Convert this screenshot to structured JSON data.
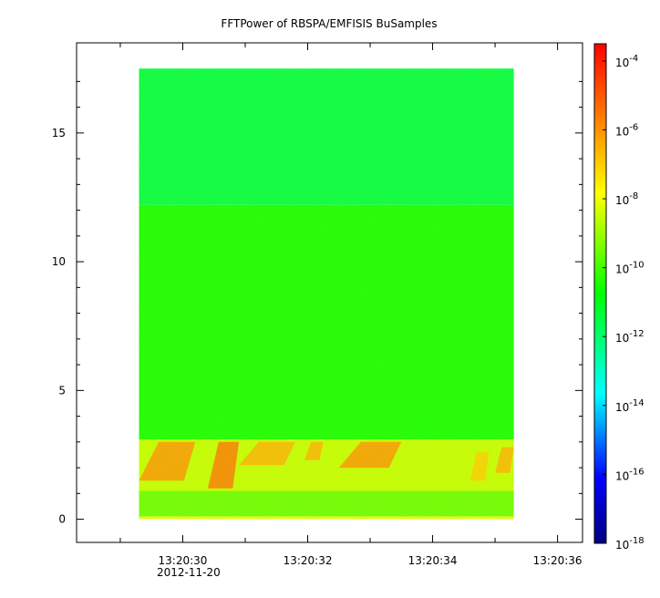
{
  "chart_data": {
    "type": "heatmap",
    "title": "FFTPower of RBSPA/EMFISIS  BuSamples",
    "x_range_seconds": [
      28.3,
      36.4
    ],
    "x_data_extent_seconds": [
      29.3,
      35.3
    ],
    "x_tick_labels": [
      "13:20:30",
      "13:20:32",
      "13:20:34",
      "13:20:36"
    ],
    "x_tick_values_seconds": [
      30,
      32,
      34,
      36
    ],
    "x_minor_tick_values_seconds": [
      29,
      31,
      33,
      35
    ],
    "x_date_label": "2012-11-20",
    "y_range": [
      -0.9,
      18.5
    ],
    "y_data_extent": [
      0,
      17.5
    ],
    "y_tick_labels": [
      "0",
      "5",
      "10",
      "15"
    ],
    "y_tick_values": [
      0,
      5,
      10,
      15
    ],
    "z_scale": "log",
    "z_range_exponent": [
      -18,
      -3.5
    ],
    "colorbar_tick_labels": [
      {
        "base": "10",
        "exp": "-4"
      },
      {
        "base": "10",
        "exp": "-6"
      },
      {
        "base": "10",
        "exp": "-8"
      },
      {
        "base": "10",
        "exp": "-10"
      },
      {
        "base": "10",
        "exp": "-12"
      },
      {
        "base": "10",
        "exp": "-14"
      },
      {
        "base": "10",
        "exp": "-16"
      },
      {
        "base": "10",
        "exp": "-18"
      }
    ],
    "colorbar_tick_exponents": [
      -4,
      -6,
      -8,
      -10,
      -12,
      -14,
      -16,
      -18
    ],
    "colormap": [
      "#00007f",
      "#0000ff",
      "#00ffff",
      "#00ff00",
      "#ffff00",
      "#ff7f00",
      "#ff0000"
    ],
    "bands": [
      {
        "y_from": 12.2,
        "y_to": 17.5,
        "log_power": -11.5
      },
      {
        "y_from": 3.1,
        "y_to": 12.2,
        "log_power": -10.5
      },
      {
        "y_from": 1.1,
        "y_to": 3.1,
        "log_power": -8.5
      },
      {
        "y_from": 0.1,
        "y_to": 1.1,
        "log_power": -9.5
      },
      {
        "y_from": 0,
        "y_to": 0.1,
        "log_power": -8
      }
    ],
    "bursts": [
      {
        "t_start": 29.3,
        "t_end": 30.2,
        "y_low": 1.5,
        "y_high": 3.0,
        "log_power": -6
      },
      {
        "t_start": 30.4,
        "t_end": 30.9,
        "y_low": 1.2,
        "y_high": 3.0,
        "log_power": -5.5
      },
      {
        "t_start": 30.9,
        "t_end": 31.8,
        "y_low": 2.1,
        "y_high": 3.0,
        "log_power": -6.5
      },
      {
        "t_start": 31.95,
        "t_end": 32.25,
        "y_low": 2.3,
        "y_high": 3.0,
        "log_power": -6.5
      },
      {
        "t_start": 32.5,
        "t_end": 33.5,
        "y_low": 2.0,
        "y_high": 3.0,
        "log_power": -6
      },
      {
        "t_start": 34.6,
        "t_end": 34.9,
        "y_low": 1.5,
        "y_high": 2.6,
        "log_power": -7
      },
      {
        "t_start": 35.0,
        "t_end": 35.3,
        "y_low": 1.8,
        "y_high": 2.8,
        "log_power": -6.5
      }
    ]
  }
}
